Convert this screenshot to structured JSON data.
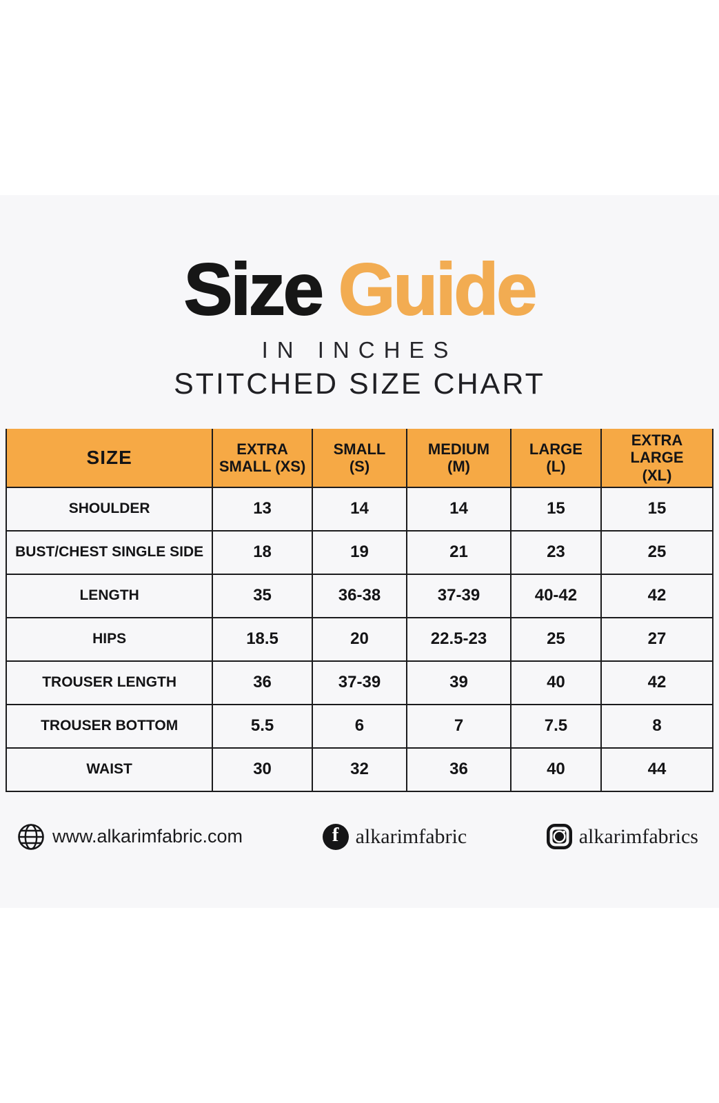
{
  "title": {
    "word1": "Size",
    "word2": "Guide"
  },
  "subtitle_inches": "IN INCHES",
  "subtitle_chart": "STITCHED SIZE CHART",
  "colors": {
    "accent": "#F2AC52",
    "header_bg": "#F6A945",
    "content_bg": "#F7F7F9",
    "text": "#161616"
  },
  "table_display": {
    "header_lines": [
      "SIZE",
      "EXTRA\nSMALL (XS)",
      "SMALL\n(S)",
      "MEDIUM\n(M)",
      "LARGE\n(L)",
      "EXTRA LARGE\n(XL)"
    ]
  },
  "chart_data": {
    "type": "table",
    "title": "Size Guide",
    "subtitle": "IN INCHES — STITCHED SIZE CHART",
    "columns": [
      "SIZE",
      "EXTRA SMALL (XS)",
      "SMALL (S)",
      "MEDIUM (M)",
      "LARGE (L)",
      "EXTRA LARGE (XL)"
    ],
    "rows": [
      [
        "SHOULDER",
        "13",
        "14",
        "14",
        "15",
        "15"
      ],
      [
        "BUST/CHEST SINGLE SIDE",
        "18",
        "19",
        "21",
        "23",
        "25"
      ],
      [
        "LENGTH",
        "35",
        "36-38",
        "37-39",
        "40-42",
        "42"
      ],
      [
        "HIPS",
        "18.5",
        "20",
        "22.5-23",
        "25",
        "27"
      ],
      [
        "TROUSER LENGTH",
        "36",
        "37-39",
        "39",
        "40",
        "42"
      ],
      [
        "TROUSER BOTTOM",
        "5.5",
        "6",
        "7",
        "7.5",
        "8"
      ],
      [
        "WAIST",
        "30",
        "32",
        "36",
        "40",
        "44"
      ]
    ]
  },
  "footer": {
    "website": "www.alkarimfabric.com",
    "facebook_handle": "alkarimfabric",
    "instagram_handle": "alkarimfabrics",
    "facebook_glyph": "f"
  }
}
